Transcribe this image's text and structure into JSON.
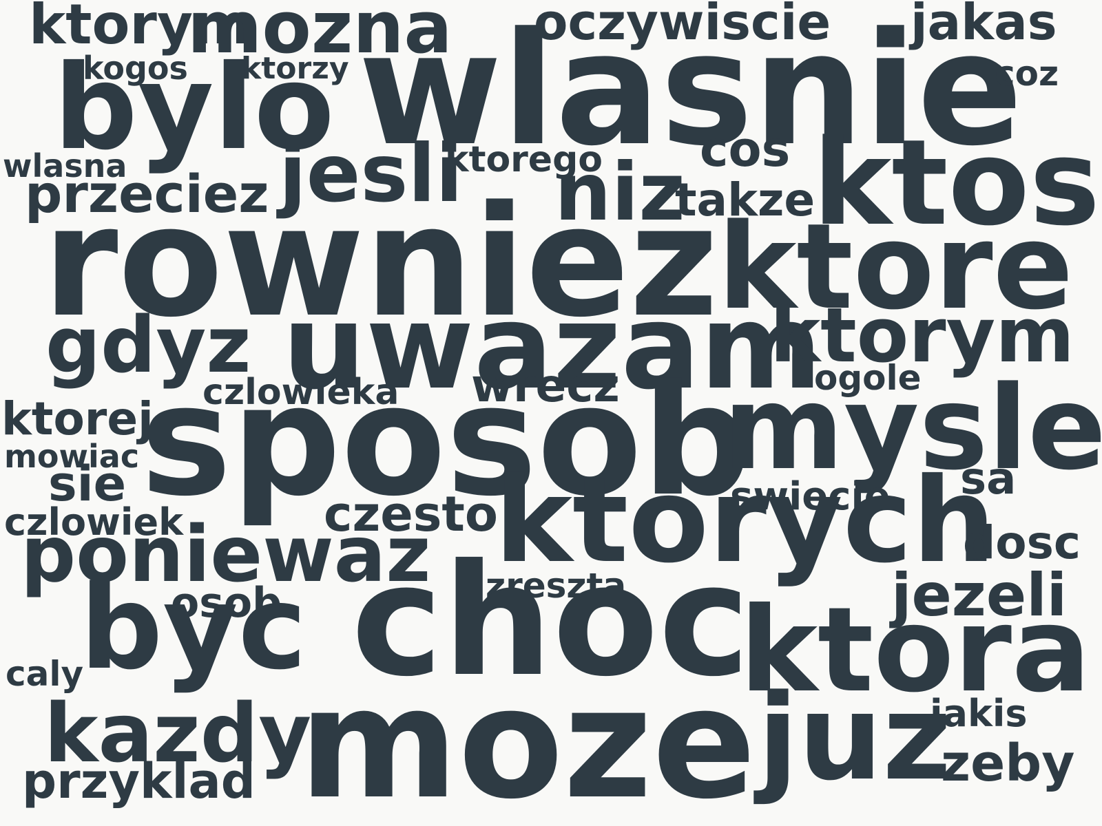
{
  "text_color": "#2e3b44",
  "background": "#f9f9f7",
  "words": {
    "ktorym_top": "ktorym",
    "mozna": "mozna",
    "oczywiscie": "oczywiscie",
    "jakas": "jakas",
    "kogos": "kogos",
    "ktorzy": "ktorzy",
    "wlasnie": "wlasnie",
    "coz": "coz",
    "bylo": "bylo",
    "wlasna": "wlasna",
    "jesli": "jesli",
    "ktorego": "ktorego",
    "cos": "cos",
    "ktos": "ktos",
    "przeciez": "przeciez",
    "niz": "niz",
    "takze": "takze",
    "rowniez": "rowniez",
    "ktore": "ktore",
    "gdyz": "gdyz",
    "uwazam": "uwazam",
    "ktorym": "ktorym",
    "ogole": "ogole",
    "czlowieka": "czlowieka",
    "wrecz": "wrecz",
    "ktorej": "ktorej",
    "sposob": "sposob",
    "mysle": "mysle",
    "mowiac": "mowiac",
    "sie": "sie",
    "sa": "sa",
    "swiecie": "swiecie",
    "czlowiek": "czlowiek",
    "czesto": "czesto",
    "ktorych": "ktorych",
    "dosc": "dosc",
    "poniewaz": "poniewaz",
    "zreszta": "zreszta",
    "jezeli": "jezeli",
    "osob": "osob",
    "byc": "byc",
    "choc": "choc",
    "ktora": "ktora",
    "caly": "caly",
    "kazdy": "kazdy",
    "moze": "moze",
    "juz": "juz",
    "jakis": "jakis",
    "przyklad": "przyklad",
    "zeby": "zeby"
  }
}
